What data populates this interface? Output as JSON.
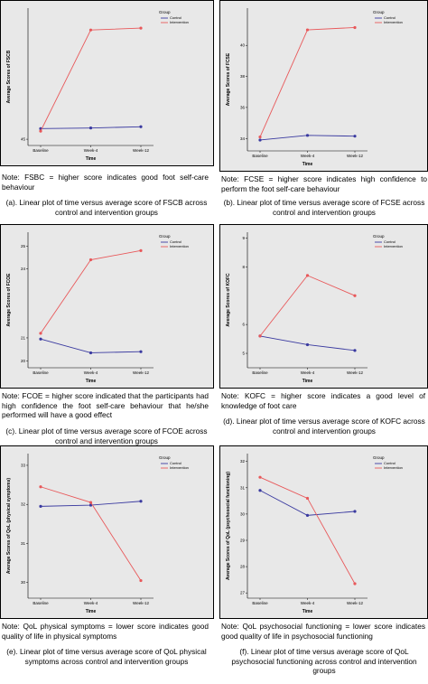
{
  "colors": {
    "control": "#3a3aa0",
    "intervention": "#e8585a",
    "plot_bg": "#e8e8e8"
  },
  "legend": {
    "title": "Group",
    "control": "Control",
    "intervention": "Intervention"
  },
  "panels": [
    {
      "id": "a",
      "note": "Note: FSBC = higher score indicates good foot self-care behaviour",
      "caption": "(a). Linear plot of time versus average score of FSCB across control and intervention groups"
    },
    {
      "id": "b",
      "note": "Note: FCSE = higher score indicates high confidence to perform the foot self-care behaviour",
      "caption": "(b). Linear plot of time versus average score of FCSE across control and intervention groups"
    },
    {
      "id": "c",
      "note": "Note: FCOE = higher score indicated that the participants had high confidence the foot self-care behaviour that he/she performed will have a good effect",
      "caption": "(c). Linear plot of time versus average score of FCOE across control and intervention groups"
    },
    {
      "id": "d",
      "note": "Note: KOFC = higher score indicates a good level of knowledge of foot care",
      "caption": "(d). Linear plot of time versus average score of KOFC across control and intervention groups"
    },
    {
      "id": "e",
      "note": "Note: QoL physical symptoms = lower score indicates good quality of life in physical symptoms",
      "caption": "(e). Linear plot of time versus average score of QoL physical symptoms across control and intervention groups"
    },
    {
      "id": "f",
      "note": "Note: QoL psychosocial functioning = lower score indicates good quality of life in psychosocial functioning",
      "caption": "(f). Linear plot of time versus average score of QoL psychosocial functioning across control and intervention groups"
    }
  ],
  "chart_data": [
    {
      "type": "line",
      "xlabel": "Time",
      "ylabel": "Average Scores of FSCB",
      "categories": [
        "Baseline",
        "Week-4",
        "Week-12"
      ],
      "ylim": [
        44,
        66
      ],
      "yticks": [
        45,
        50,
        55,
        60,
        65
      ],
      "yticks_shown": [
        45
      ],
      "series": [
        {
          "name": "Control",
          "values": [
            46.7,
            46.8,
            47.0
          ]
        },
        {
          "name": "Intervention",
          "values": [
            46.3,
            62.5,
            62.8
          ]
        }
      ]
    },
    {
      "type": "line",
      "xlabel": "Time",
      "ylabel": "Average Scores of FCSE",
      "categories": [
        "Baseline",
        "Week-4",
        "Week-12"
      ],
      "ylim": [
        33.2,
        42.4
      ],
      "yticks": [
        34,
        36,
        38,
        40,
        42
      ],
      "yticks_shown": [
        34,
        36,
        38,
        40
      ],
      "series": [
        {
          "name": "Control",
          "values": [
            33.9,
            34.2,
            34.15
          ]
        },
        {
          "name": "Intervention",
          "values": [
            34.1,
            41.0,
            41.15
          ]
        }
      ]
    },
    {
      "type": "line",
      "xlabel": "Time",
      "ylabel": "Average Scores of FCOE",
      "categories": [
        "Baseline",
        "Week-4",
        "Week-12"
      ],
      "ylim": [
        19.7,
        25.6
      ],
      "yticks": [
        20,
        21,
        22,
        23,
        24,
        25
      ],
      "yticks_shown": [
        20,
        21,
        24,
        25
      ],
      "series": [
        {
          "name": "Control",
          "values": [
            20.95,
            20.35,
            20.4
          ]
        },
        {
          "name": "Intervention",
          "values": [
            21.2,
            24.4,
            24.8
          ]
        }
      ]
    },
    {
      "type": "line",
      "xlabel": "Time",
      "ylabel": "Average Scores of KOFC",
      "categories": [
        "Baseline",
        "Week-4",
        "Week-12"
      ],
      "ylim": [
        4.5,
        9.2
      ],
      "yticks": [
        5,
        6,
        7,
        8,
        9
      ],
      "yticks_shown": [
        5,
        6,
        8,
        9
      ],
      "series": [
        {
          "name": "Control",
          "values": [
            5.6,
            5.3,
            5.1
          ]
        },
        {
          "name": "Intervention",
          "values": [
            5.6,
            7.7,
            7.0
          ]
        }
      ]
    },
    {
      "type": "line",
      "xlabel": "Time",
      "ylabel": "Average Scores of QoL (physical symptoms)",
      "categories": [
        "Baseline",
        "Week-4",
        "Week-12"
      ],
      "ylim": [
        29.6,
        33.3
      ],
      "yticks": [
        30,
        31,
        32,
        33
      ],
      "yticks_shown": [
        30,
        31,
        32,
        33
      ],
      "series": [
        {
          "name": "Control",
          "values": [
            31.95,
            31.98,
            32.08
          ]
        },
        {
          "name": "Intervention",
          "values": [
            32.45,
            32.05,
            30.05
          ]
        }
      ]
    },
    {
      "type": "line",
      "xlabel": "Time",
      "ylabel": "Average Scores of QoL (psychosocial functioning)",
      "categories": [
        "Baseline",
        "Week-4",
        "Week-12"
      ],
      "ylim": [
        26.8,
        32.3
      ],
      "yticks": [
        27,
        28,
        29,
        30,
        31,
        32
      ],
      "yticks_shown": [
        27,
        28,
        29,
        30,
        31,
        32
      ],
      "series": [
        {
          "name": "Control",
          "values": [
            30.9,
            29.95,
            30.1
          ]
        },
        {
          "name": "Intervention",
          "values": [
            31.4,
            30.6,
            27.35
          ]
        }
      ]
    }
  ]
}
